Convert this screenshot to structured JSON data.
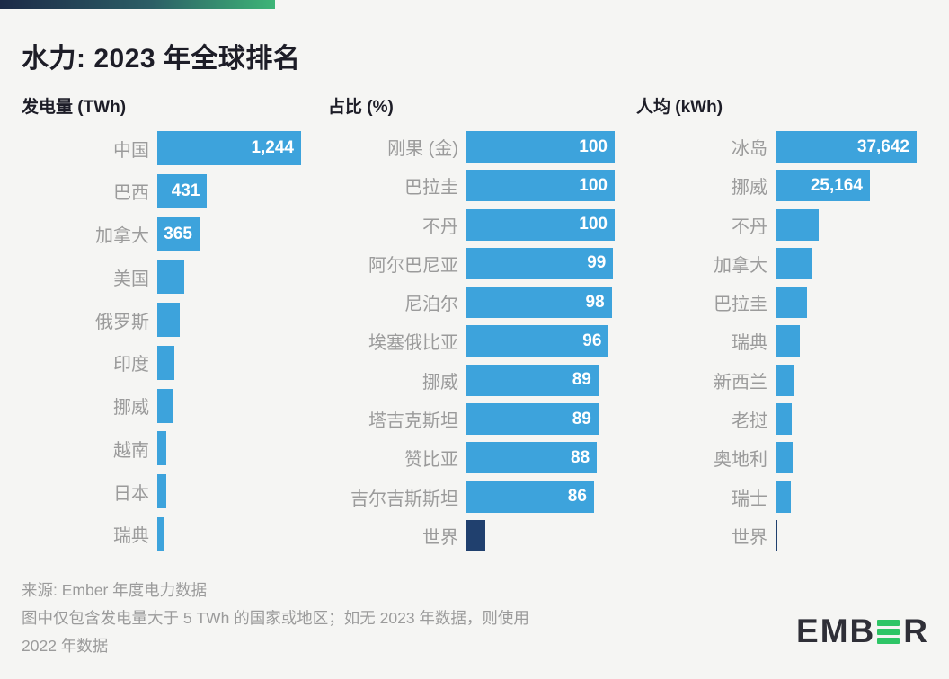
{
  "title": "水力: 2023 年全球排名",
  "colors": {
    "background": "#f5f5f3",
    "bar_blue": "#3da3dc",
    "bar_world_navy": "#20406e",
    "label_gray": "#9b9b9b",
    "text_dark": "#1d1d27",
    "logo_green": "#2ec566",
    "gradient_start": "#1c2a47",
    "gradient_end": "#3eb577"
  },
  "footer": {
    "line1": "来源: Ember 年度电力数据",
    "line2": "图中仅包含发电量大于 5 TWh 的国家或地区；如无 2023 年数据，则使用",
    "line3": "2022 年数据"
  },
  "logo": {
    "left": "EMB",
    "right": "R",
    "name": "EMBER"
  },
  "chart_data": [
    {
      "type": "bar",
      "orientation": "horizontal",
      "title": "发电量 (TWh)",
      "unit": "TWh",
      "xmax": 1244,
      "rows": [
        {
          "name": "中国",
          "value": 1244,
          "label": "1,244"
        },
        {
          "name": "巴西",
          "value": 431,
          "label": "431"
        },
        {
          "name": "加拿大",
          "value": 365,
          "label": "365"
        },
        {
          "name": "美国",
          "value": 237,
          "label": ""
        },
        {
          "name": "俄罗斯",
          "value": 198,
          "label": ""
        },
        {
          "name": "印度",
          "value": 146,
          "label": ""
        },
        {
          "name": "挪威",
          "value": 136,
          "label": ""
        },
        {
          "name": "越南",
          "value": 80,
          "label": ""
        },
        {
          "name": "日本",
          "value": 74,
          "label": ""
        },
        {
          "name": "瑞典",
          "value": 66,
          "label": ""
        }
      ]
    },
    {
      "type": "bar",
      "orientation": "horizontal",
      "title": "占比 (%)",
      "unit": "%",
      "xmax": 100,
      "rows": [
        {
          "name": "刚果 (金)",
          "value": 100,
          "label": "100"
        },
        {
          "name": "巴拉圭",
          "value": 100,
          "label": "100"
        },
        {
          "name": "不丹",
          "value": 100,
          "label": "100"
        },
        {
          "name": "阿尔巴尼亚",
          "value": 99,
          "label": "99"
        },
        {
          "name": "尼泊尔",
          "value": 98,
          "label": "98"
        },
        {
          "name": "埃塞俄比亚",
          "value": 96,
          "label": "96"
        },
        {
          "name": "挪威",
          "value": 89,
          "label": "89"
        },
        {
          "name": "塔吉克斯坦",
          "value": 89,
          "label": "89"
        },
        {
          "name": "赞比亚",
          "value": 88,
          "label": "88"
        },
        {
          "name": "吉尔吉斯斯坦",
          "value": 86,
          "label": "86"
        },
        {
          "name": "世界",
          "value": 13,
          "label": "",
          "world": true
        }
      ]
    },
    {
      "type": "bar",
      "orientation": "horizontal",
      "title": "人均 (kWh)",
      "unit": "kWh",
      "xmax": 37642,
      "rows": [
        {
          "name": "冰岛",
          "value": 37642,
          "label": "37,642"
        },
        {
          "name": "挪威",
          "value": 25164,
          "label": "25,164"
        },
        {
          "name": "不丹",
          "value": 11500,
          "label": ""
        },
        {
          "name": "加拿大",
          "value": 9600,
          "label": ""
        },
        {
          "name": "巴拉圭",
          "value": 8500,
          "label": ""
        },
        {
          "name": "瑞典",
          "value": 6500,
          "label": ""
        },
        {
          "name": "新西兰",
          "value": 4900,
          "label": ""
        },
        {
          "name": "老挝",
          "value": 4400,
          "label": ""
        },
        {
          "name": "奥地利",
          "value": 4450,
          "label": ""
        },
        {
          "name": "瑞士",
          "value": 4150,
          "label": ""
        },
        {
          "name": "世界",
          "value": 530,
          "label": "",
          "world": true
        }
      ]
    }
  ]
}
